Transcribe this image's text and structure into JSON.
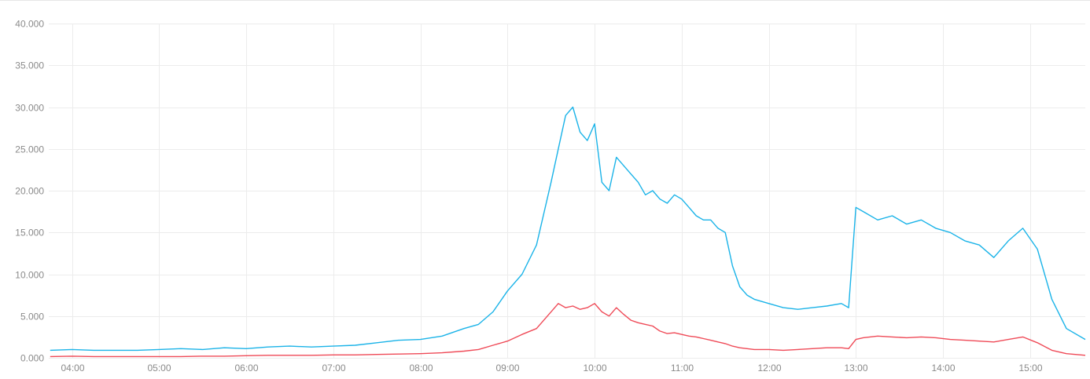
{
  "chart_data": {
    "type": "line",
    "title": "",
    "xlabel": "",
    "ylabel": "",
    "x_range": [
      "03:44",
      "15:38"
    ],
    "ylim": [
      0,
      40000
    ],
    "y_ticks": [
      0,
      5000,
      10000,
      15000,
      20000,
      25000,
      30000,
      35000,
      40000
    ],
    "y_tick_labels": [
      "0.000",
      "5.000",
      "10.000",
      "15.000",
      "20.000",
      "25.000",
      "30.000",
      "35.000",
      "40.000"
    ],
    "x_ticks": [
      "04:00",
      "05:00",
      "06:00",
      "07:00",
      "08:00",
      "09:00",
      "10:00",
      "11:00",
      "12:00",
      "13:00",
      "14:00",
      "15:00"
    ],
    "grid": true,
    "legend": "none",
    "colors": {
      "series_blue": "#1ab3e8",
      "series_red": "#ef4a57",
      "grid": "#ececec",
      "ticks": "#8a8a8a"
    },
    "x": [
      "03:45",
      "04:00",
      "04:15",
      "04:30",
      "04:45",
      "05:00",
      "05:15",
      "05:30",
      "05:45",
      "06:00",
      "06:15",
      "06:30",
      "06:45",
      "07:00",
      "07:15",
      "07:30",
      "07:45",
      "08:00",
      "08:15",
      "08:30",
      "08:40",
      "08:50",
      "09:00",
      "09:10",
      "09:20",
      "09:30",
      "09:35",
      "09:40",
      "09:45",
      "09:50",
      "09:55",
      "10:00",
      "10:05",
      "10:10",
      "10:15",
      "10:20",
      "10:25",
      "10:30",
      "10:35",
      "10:40",
      "10:45",
      "10:50",
      "10:55",
      "11:00",
      "11:05",
      "11:10",
      "11:15",
      "11:20",
      "11:25",
      "11:30",
      "11:35",
      "11:40",
      "11:45",
      "11:50",
      "12:00",
      "12:10",
      "12:20",
      "12:30",
      "12:40",
      "12:50",
      "12:55",
      "13:00",
      "13:05",
      "13:15",
      "13:25",
      "13:35",
      "13:45",
      "13:55",
      "14:05",
      "14:15",
      "14:25",
      "14:35",
      "14:45",
      "14:55",
      "15:05",
      "15:15",
      "15:25",
      "15:38"
    ],
    "series": [
      {
        "values": [
          900,
          1000,
          900,
          900,
          900,
          1000,
          1100,
          1000,
          1200,
          1100,
          1300,
          1400,
          1300,
          1400,
          1500,
          1800,
          2100,
          2200,
          2600,
          3500,
          4000,
          5500,
          8000,
          10000,
          13500,
          21000,
          25000,
          29000,
          30000,
          27000,
          26000,
          28000,
          21000,
          20000,
          24000,
          23000,
          22000,
          21000,
          19500,
          20000,
          19000,
          18500,
          19500,
          19000,
          18000,
          17000,
          16500,
          16500,
          15500,
          15000,
          11000,
          8500,
          7500,
          7000,
          6500,
          6000,
          5800,
          6000,
          6200,
          6500,
          6000,
          18000,
          17500,
          16500,
          17000,
          16000,
          16500,
          15500,
          15000,
          14000,
          13500,
          12000,
          14000,
          15500,
          13000,
          7000,
          3500,
          2200
        ]
      },
      {
        "values": [
          150,
          200,
          150,
          150,
          150,
          150,
          150,
          200,
          200,
          250,
          300,
          300,
          300,
          350,
          350,
          400,
          450,
          500,
          600,
          800,
          1000,
          1500,
          2000,
          2800,
          3500,
          5500,
          6500,
          6000,
          6200,
          5800,
          6000,
          6500,
          5500,
          5000,
          6000,
          5200,
          4500,
          4200,
          4000,
          3800,
          3200,
          2900,
          3000,
          2800,
          2600,
          2500,
          2300,
          2100,
          1900,
          1700,
          1400,
          1200,
          1100,
          1000,
          1000,
          900,
          1000,
          1100,
          1200,
          1200,
          1100,
          2200,
          2400,
          2600,
          2500,
          2400,
          2500,
          2400,
          2200,
          2100,
          2000,
          1900,
          2200,
          2500,
          1800,
          900,
          500,
          300
        ]
      }
    ]
  }
}
